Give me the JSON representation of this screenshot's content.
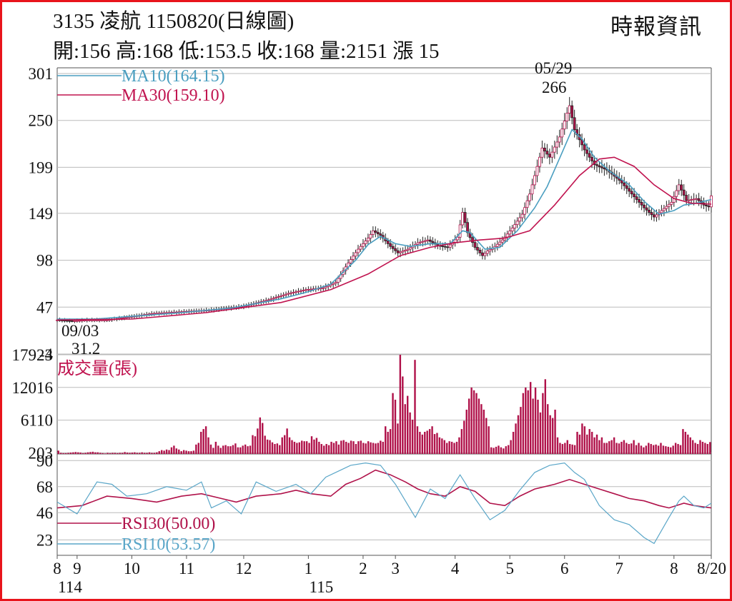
{
  "header": {
    "title": "3135  凌航 1150820(日線圖)",
    "stats": "開:156 高:168 低:153.5 收:168 量:2151 漲 15",
    "source": "時報資訊"
  },
  "colors": {
    "frame": "#e8141c",
    "ma10": "#4a9ec0",
    "ma30": "#c0134f",
    "candle": "#b0124a",
    "volume": "#b0124a",
    "rsi30": "#b0124a",
    "rsi10": "#5aa6c8",
    "grid": "#bbbbbb"
  },
  "chart_data": [
    {
      "type": "candlestick",
      "ylim": [
        -4,
        301
      ],
      "yticks": [
        "301",
        "250",
        "199",
        "149",
        "98",
        "47",
        "-4"
      ],
      "legend": [
        "MA10(164.15)",
        "MA30(159.10)"
      ],
      "annotations": [
        {
          "date": "05/29",
          "value": "266"
        },
        {
          "date": "09/03",
          "value": "31.2"
        }
      ],
      "series": [
        {
          "name": "price",
          "points": [
            [
              0,
              33
            ],
            [
              6,
              32
            ],
            [
              12,
              33
            ],
            [
              20,
              33
            ],
            [
              28,
              36
            ],
            [
              38,
              40
            ],
            [
              50,
              42
            ],
            [
              62,
              44
            ],
            [
              75,
              48
            ],
            [
              85,
              55
            ],
            [
              93,
              62
            ],
            [
              100,
              66
            ],
            [
              107,
              68
            ],
            [
              112,
              74
            ],
            [
              117,
              95
            ],
            [
              121,
              110
            ],
            [
              125,
              122
            ],
            [
              127,
              130
            ],
            [
              130,
              125
            ],
            [
              134,
              113
            ],
            [
              137,
              106
            ],
            [
              141,
              110
            ],
            [
              145,
              117
            ],
            [
              149,
              120
            ],
            [
              153,
              114
            ],
            [
              157,
              112
            ],
            [
              161,
              123
            ],
            [
              163,
              150
            ],
            [
              165,
              128
            ],
            [
              168,
              112
            ],
            [
              171,
              103
            ],
            [
              173,
              108
            ],
            [
              176,
              113
            ],
            [
              179,
              120
            ],
            [
              183,
              133
            ],
            [
              187,
              148
            ],
            [
              190,
              170
            ],
            [
              193,
              200
            ],
            [
              195,
              220
            ],
            [
              198,
              210
            ],
            [
              202,
              232
            ],
            [
              205,
              258
            ],
            [
              206,
              266
            ],
            [
              208,
              240
            ],
            [
              212,
              218
            ],
            [
              216,
              202
            ],
            [
              221,
              196
            ],
            [
              226,
              185
            ],
            [
              231,
              170
            ],
            [
              236,
              155
            ],
            [
              240,
              145
            ],
            [
              243,
              152
            ],
            [
              247,
              161
            ],
            [
              250,
              180
            ],
            [
              253,
              163
            ],
            [
              257,
              165
            ],
            [
              260,
              158
            ],
            [
              262,
              156
            ],
            [
              263,
              168
            ]
          ]
        },
        {
          "name": "MA10",
          "points": [
            [
              0,
              34
            ],
            [
              15,
              34
            ],
            [
              30,
              37
            ],
            [
              50,
              41
            ],
            [
              70,
              46
            ],
            [
              90,
              56
            ],
            [
              100,
              63
            ],
            [
              110,
              72
            ],
            [
              120,
              98
            ],
            [
              125,
              115
            ],
            [
              130,
              124
            ],
            [
              136,
              116
            ],
            [
              142,
              113
            ],
            [
              150,
              116
            ],
            [
              158,
              116
            ],
            [
              163,
              130
            ],
            [
              166,
              128
            ],
            [
              172,
              110
            ],
            [
              178,
              112
            ],
            [
              185,
              130
            ],
            [
              192,
              155
            ],
            [
              197,
              178
            ],
            [
              203,
              215
            ],
            [
              207,
              240
            ],
            [
              211,
              230
            ],
            [
              216,
              210
            ],
            [
              222,
              195
            ],
            [
              230,
              180
            ],
            [
              236,
              162
            ],
            [
              242,
              148
            ],
            [
              248,
              152
            ],
            [
              252,
              158
            ],
            [
              257,
              160
            ],
            [
              263,
              164
            ]
          ]
        },
        {
          "name": "MA30",
          "points": [
            [
              0,
              33
            ],
            [
              30,
              34
            ],
            [
              60,
              41
            ],
            [
              90,
              52
            ],
            [
              110,
              66
            ],
            [
              125,
              83
            ],
            [
              138,
              103
            ],
            [
              150,
              112
            ],
            [
              160,
              117
            ],
            [
              170,
              120
            ],
            [
              180,
              122
            ],
            [
              190,
              130
            ],
            [
              200,
              158
            ],
            [
              210,
              190
            ],
            [
              218,
              208
            ],
            [
              224,
              210
            ],
            [
              232,
              200
            ],
            [
              240,
              180
            ],
            [
              248,
              165
            ],
            [
              255,
              160
            ],
            [
              263,
              159
            ]
          ]
        }
      ]
    },
    {
      "type": "bar",
      "title": "成交量(張)",
      "ylim": [
        0,
        17923
      ],
      "yticks": [
        "17923",
        "12016",
        "6110",
        "203"
      ],
      "values": [
        600,
        200,
        150,
        150,
        200,
        250,
        300,
        350,
        300,
        250,
        150,
        200,
        300,
        350,
        400,
        300,
        300,
        200,
        150,
        100,
        200,
        150,
        200,
        200,
        150,
        200,
        200,
        350,
        250,
        200,
        250,
        300,
        200,
        200,
        300,
        200,
        200,
        300,
        200,
        200,
        300,
        500,
        700,
        600,
        800,
        700,
        1200,
        1500,
        1000,
        800,
        500,
        700,
        600,
        500,
        500,
        600,
        1700,
        2000,
        4000,
        4500,
        5000,
        3000,
        1700,
        1100,
        2200,
        1500,
        1100,
        1500,
        1600,
        1400,
        1400,
        1600,
        1900,
        1200,
        1200,
        1500,
        1700,
        1400,
        1500,
        3400,
        3200,
        4600,
        6600,
        5600,
        3300,
        2600,
        2500,
        2100,
        1800,
        1900,
        1600,
        3000,
        3400,
        4600,
        3000,
        2500,
        2200,
        2000,
        2100,
        2400,
        2300,
        2300,
        2000,
        3200,
        2600,
        2900,
        2200,
        1800,
        1500,
        1800,
        1600,
        2200,
        2000,
        2300,
        1700,
        2400,
        2500,
        2200,
        2000,
        2400,
        2300,
        1800,
        2300,
        2400,
        2000,
        1900,
        2300,
        2100,
        2000,
        1900,
        2000,
        2400,
        2200,
        5000,
        4000,
        4500,
        11000,
        9800,
        5500,
        17923,
        14000,
        9000,
        10500,
        7500,
        6200,
        17000,
        5000,
        4000,
        3500,
        4000,
        4200,
        4500,
        5000,
        3600,
        3800,
        3000,
        2800,
        2500,
        2000,
        2300,
        2200,
        2000,
        2200,
        3000,
        4500,
        6000,
        8000,
        10000,
        12000,
        11500,
        11000,
        10000,
        9000,
        8000,
        6500,
        5000,
        1200,
        1100,
        1300,
        1500,
        1200,
        1000,
        1400,
        1600,
        2500,
        4000,
        5500,
        7000,
        8500,
        11000,
        12000,
        11500,
        13000,
        10000,
        12000,
        9800,
        7500,
        11000,
        13500,
        9000,
        7000,
        6500,
        8000,
        3000,
        2000,
        1800,
        2000,
        2500,
        1800,
        1700,
        1600,
        4000,
        3500,
        5500,
        5000,
        3500,
        4500,
        4000,
        3000,
        3500,
        2500,
        3000,
        2000,
        2000,
        2300,
        2500,
        3000,
        2000,
        1900,
        2200,
        2500,
        2000,
        1800,
        1900,
        2500,
        1600,
        2000,
        1500,
        1200,
        1500,
        2000,
        1800,
        1600,
        1700,
        1500,
        2000,
        1500,
        1400,
        1300,
        1200,
        1500,
        2000,
        1800,
        1600,
        4500,
        4000,
        3500,
        3000,
        2500,
        2000,
        1800,
        2500,
        2200,
        2000,
        1800,
        2151
      ]
    },
    {
      "type": "line",
      "ylim": [
        10,
        95
      ],
      "yticks": [
        "90",
        "68",
        "46",
        "23"
      ],
      "legend": [
        "RSI30(50.00)",
        "RSI10(53.57)"
      ],
      "series": [
        {
          "name": "RSI30",
          "points": [
            [
              0,
              50
            ],
            [
              10,
              52
            ],
            [
              20,
              60
            ],
            [
              30,
              58
            ],
            [
              40,
              55
            ],
            [
              50,
              60
            ],
            [
              58,
              62
            ],
            [
              66,
              58
            ],
            [
              72,
              55
            ],
            [
              80,
              60
            ],
            [
              90,
              62
            ],
            [
              96,
              65
            ],
            [
              102,
              62
            ],
            [
              110,
              60
            ],
            [
              116,
              70
            ],
            [
              122,
              75
            ],
            [
              128,
              82
            ],
            [
              134,
              78
            ],
            [
              140,
              72
            ],
            [
              145,
              66
            ],
            [
              150,
              62
            ],
            [
              156,
              60
            ],
            [
              162,
              68
            ],
            [
              168,
              64
            ],
            [
              174,
              54
            ],
            [
              180,
              52
            ],
            [
              186,
              60
            ],
            [
              192,
              66
            ],
            [
              200,
              70
            ],
            [
              206,
              74
            ],
            [
              212,
              70
            ],
            [
              218,
              66
            ],
            [
              224,
              62
            ],
            [
              230,
              58
            ],
            [
              236,
              56
            ],
            [
              242,
              52
            ],
            [
              246,
              50
            ],
            [
              252,
              54
            ],
            [
              256,
              52
            ],
            [
              263,
              50
            ]
          ]
        },
        {
          "name": "RSI10",
          "points": [
            [
              0,
              55
            ],
            [
              8,
              45
            ],
            [
              16,
              72
            ],
            [
              22,
              70
            ],
            [
              28,
              60
            ],
            [
              36,
              62
            ],
            [
              44,
              68
            ],
            [
              52,
              65
            ],
            [
              58,
              72
            ],
            [
              62,
              50
            ],
            [
              68,
              56
            ],
            [
              74,
              45
            ],
            [
              80,
              72
            ],
            [
              88,
              64
            ],
            [
              96,
              70
            ],
            [
              102,
              62
            ],
            [
              108,
              76
            ],
            [
              114,
              82
            ],
            [
              118,
              86
            ],
            [
              124,
              88
            ],
            [
              130,
              86
            ],
            [
              136,
              70
            ],
            [
              140,
              56
            ],
            [
              144,
              42
            ],
            [
              150,
              66
            ],
            [
              156,
              58
            ],
            [
              162,
              78
            ],
            [
              168,
              58
            ],
            [
              174,
              40
            ],
            [
              180,
              48
            ],
            [
              186,
              65
            ],
            [
              192,
              80
            ],
            [
              198,
              86
            ],
            [
              204,
              88
            ],
            [
              208,
              80
            ],
            [
              212,
              74
            ],
            [
              218,
              52
            ],
            [
              224,
              40
            ],
            [
              230,
              36
            ],
            [
              236,
              25
            ],
            [
              240,
              20
            ],
            [
              246,
              42
            ],
            [
              250,
              56
            ],
            [
              252,
              60
            ],
            [
              256,
              52
            ],
            [
              260,
              50
            ],
            [
              263,
              54
            ]
          ]
        }
      ]
    }
  ],
  "xaxis": {
    "months": [
      {
        "label": "8",
        "index": 0
      },
      {
        "label": "9",
        "index": 8
      },
      {
        "label": "10",
        "index": 30
      },
      {
        "label": "11",
        "index": 52
      },
      {
        "label": "12",
        "index": 75
      },
      {
        "label": "1",
        "index": 101
      },
      {
        "label": "2",
        "index": 123
      },
      {
        "label": "3",
        "index": 136
      },
      {
        "label": "4",
        "index": 160
      },
      {
        "label": "5",
        "index": 182
      },
      {
        "label": "6",
        "index": 204
      },
      {
        "label": "7",
        "index": 226
      },
      {
        "label": "8",
        "index": 248
      },
      {
        "label": "8/20",
        "index": 263
      }
    ],
    "years": [
      {
        "label": "114",
        "index": 0
      },
      {
        "label": "115",
        "index": 101
      }
    ]
  }
}
